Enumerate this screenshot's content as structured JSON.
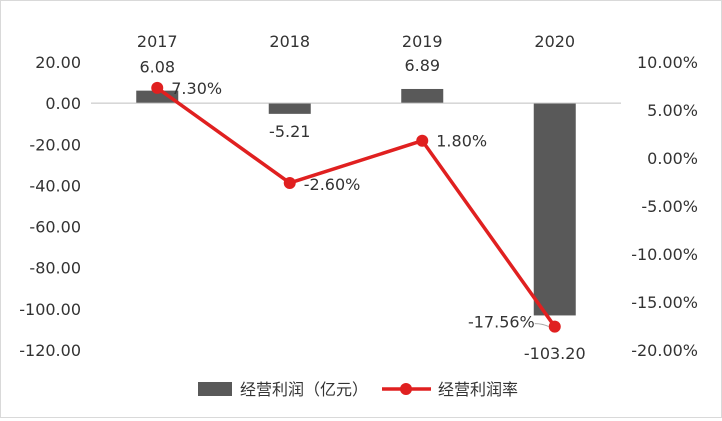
{
  "chart_data": {
    "type": "bar",
    "categories": [
      "2017",
      "2018",
      "2019",
      "2020"
    ],
    "series": [
      {
        "name": "经营利润（亿元）",
        "type": "bar",
        "axis": "left",
        "values": [
          6.08,
          -5.21,
          6.89,
          -103.2
        ],
        "labels": [
          "6.08",
          "-5.21",
          "6.89",
          "-103.20"
        ],
        "color": "#595959"
      },
      {
        "name": "经营利润率",
        "type": "line",
        "axis": "right",
        "values": [
          7.3,
          -2.6,
          1.8,
          -17.56
        ],
        "labels": [
          "7.30%",
          "-2.60%",
          "1.80%",
          "-17.56%"
        ],
        "color": "#e02020"
      }
    ],
    "left_axis": {
      "ylim": [
        -120,
        20
      ],
      "ticks": [
        20,
        0,
        -20,
        -40,
        -60,
        -80,
        -100,
        -120
      ],
      "tick_labels": [
        "20.00",
        "0.00",
        "-20.00",
        "-40.00",
        "-60.00",
        "-80.00",
        "-100.00",
        "-120.00"
      ]
    },
    "right_axis": {
      "ylim": [
        -20,
        10
      ],
      "ticks": [
        10,
        5,
        0,
        -5,
        -10,
        -15,
        -20
      ],
      "tick_labels": [
        "10.00%",
        "5.00%",
        "0.00%",
        "-5.00%",
        "-10.00%",
        "-15.00%",
        "-20.00%"
      ]
    },
    "x_axis_position": "top",
    "grid": false,
    "legend": "bottom"
  }
}
